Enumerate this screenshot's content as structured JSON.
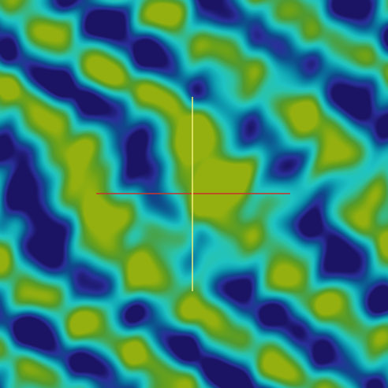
{
  "render": {
    "colormap": [
      "#1b1464",
      "#2a2f9a",
      "#0e4a8a",
      "#0a7aa0",
      "#10a6b4",
      "#1fc3c3",
      "#2cc3a6",
      "#3fae6a",
      "#4f9a30",
      "#6aa21a",
      "#93b010"
    ],
    "background_color": "#15206b"
  },
  "axes": {
    "horizontal_color": "#c8322a",
    "vertical_color": "#f2f07a"
  }
}
